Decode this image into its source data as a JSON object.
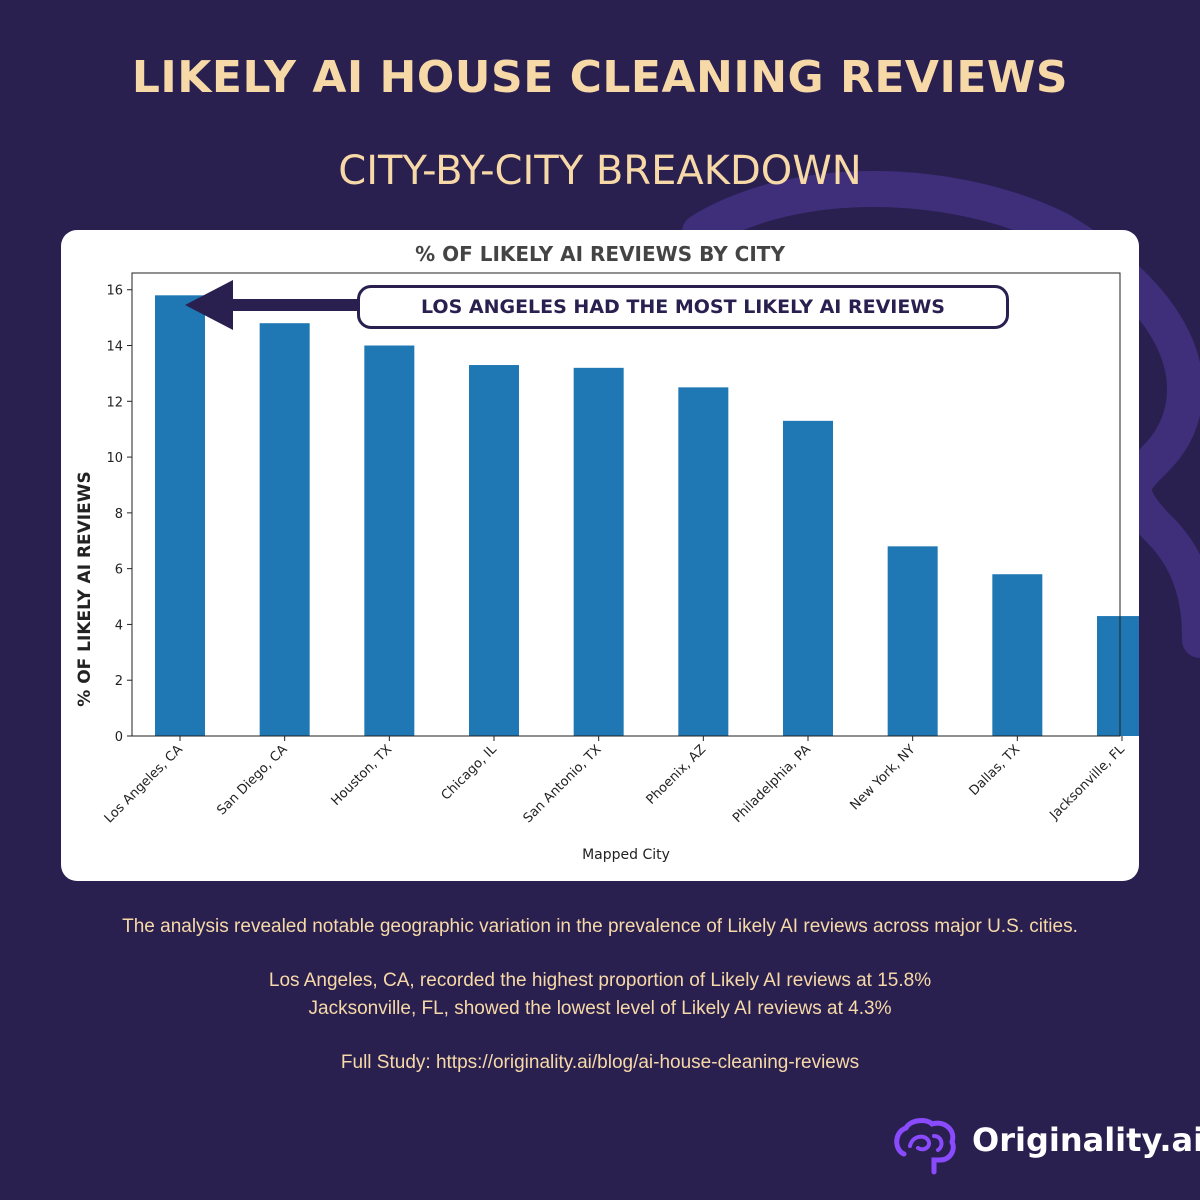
{
  "header": {
    "title": "LIKELY AI HOUSE CLEANING REVIEWS",
    "subtitle": "CITY-BY-CITY BREAKDOWN"
  },
  "chart_data": {
    "type": "bar",
    "title": "% OF LIKELY AI REVIEWS BY CITY",
    "xlabel": "Mapped City",
    "ylabel": "% OF LIKELY AI REVIEWS",
    "categories": [
      "Los Angeles, CA",
      "San Diego, CA",
      "Houston, TX",
      "Chicago, IL",
      "San Antonio, TX",
      "Phoenix, AZ",
      "Philadelphia, PA",
      "New York, NY",
      "Dallas, TX",
      "Jacksonville, FL"
    ],
    "values": [
      15.8,
      14.8,
      14.0,
      13.3,
      13.2,
      12.5,
      11.3,
      6.8,
      5.8,
      4.3
    ],
    "ylim": [
      0,
      16.6
    ],
    "yticks": [
      0,
      2,
      4,
      6,
      8,
      10,
      12,
      14,
      16
    ],
    "bar_color": "#1f77b4",
    "grid": false,
    "annotation": "LOS ANGELES HAD THE MOST LIKELY AI REVIEWS"
  },
  "text": {
    "intro": "The analysis revealed notable geographic variation in the prevalence of Likely AI reviews across major U.S. cities.",
    "highest": "Los Angeles, CA, recorded the highest proportion of Likely AI reviews at 15.8%",
    "lowest": "Jacksonville, FL, showed the lowest level of Likely AI reviews at 4.3%",
    "study": "Full Study: https://originality.ai/blog/ai-house-cleaning-reviews"
  },
  "brand": {
    "name": "Originality.ai",
    "icon": "brain-icon",
    "background_color": "#2a2050",
    "accent_color": "#f7d9a8"
  }
}
